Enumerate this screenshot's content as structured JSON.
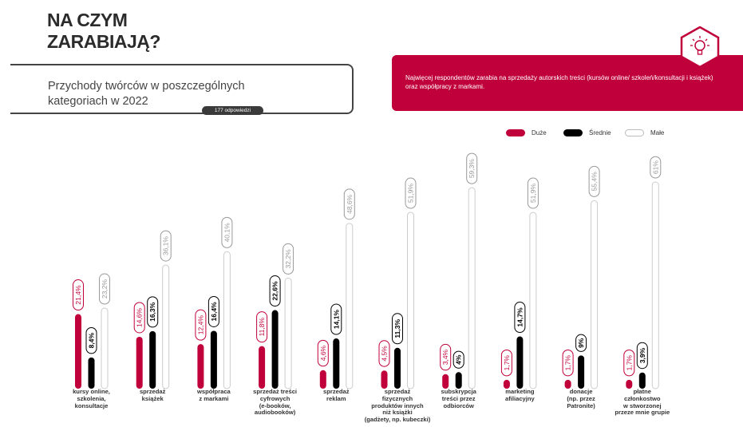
{
  "header": {
    "title_line1": "NA CZYM",
    "title_line2": "ZARABIAJĄ?",
    "subtitle_line1": "Przychody twórców w poszczególnych",
    "subtitle_line2": "kategoriach w 2022",
    "responses": "177 odpowiedzi"
  },
  "callout": {
    "text": "Najwięcej respondentów zarabia na sprzedaży autorskich treści (kursów online/ szkoleń/konsultacji i książek) oraz współpracy z markami.",
    "icon": "lightbulb-icon",
    "color": "#c0003a"
  },
  "chart_data": {
    "type": "bar",
    "title": "Przychody twórców w poszczególnych kategoriach w 2022",
    "xlabel": "",
    "ylabel": "",
    "ylim": [
      0,
      61
    ],
    "legend_position": "top-right",
    "categories": [
      "kursy online,\nszkolenia,\nkonsultacje",
      "sprzedaż\nksiążek",
      "współpraca\nz markami",
      "sprzedaż treści\ncyfrowych\n(e-booków,\naudiobooków)",
      "sprzedaż\nreklam",
      "sprzedaż\nfizycznych\nproduktów innych\nniż książki\n(gadżety, np. kubeczki)",
      "subskrypcja\ntreści przez\nodbiorców",
      "marketing\nafiliacyjny",
      "donacje\n(np. przez\nPatronite)",
      "płatne\nczłonkostwo\nw stworzonej\nprzeze mnie grupie"
    ],
    "series": [
      {
        "name": "Duże",
        "color": "#c0003a",
        "values": [
          21.4,
          14.6,
          12.4,
          11.8,
          4.6,
          4.5,
          3.4,
          1.7,
          1.7,
          1.7
        ],
        "labels": [
          "21,4%",
          "14,6%",
          "12,4%",
          "11,8%",
          "4,6%",
          "4,5%",
          "3,4%",
          "1,7%",
          "1,7%",
          "1,7%"
        ]
      },
      {
        "name": "Średnie",
        "color": "#000000",
        "values": [
          8.4,
          16.3,
          16.4,
          22.6,
          14.1,
          11.3,
          4,
          14.7,
          9,
          3.9
        ],
        "labels": [
          "8,4%",
          "16,3%",
          "16,4%",
          "22,6%",
          "14,1%",
          "11,3%",
          "4%",
          "14,7%",
          "9%",
          "3,9%"
        ]
      },
      {
        "name": "Małe",
        "color": "#ffffff",
        "values": [
          23.2,
          36.1,
          40.1,
          32.2,
          48.6,
          51.9,
          59.3,
          51.9,
          55.4,
          61
        ],
        "labels": [
          "23,2%",
          "36,1%",
          "40,1%",
          "32,2%",
          "48,6%",
          "51,9%",
          "59,3%",
          "51,9%",
          "55,4%",
          "61%"
        ]
      }
    ]
  }
}
